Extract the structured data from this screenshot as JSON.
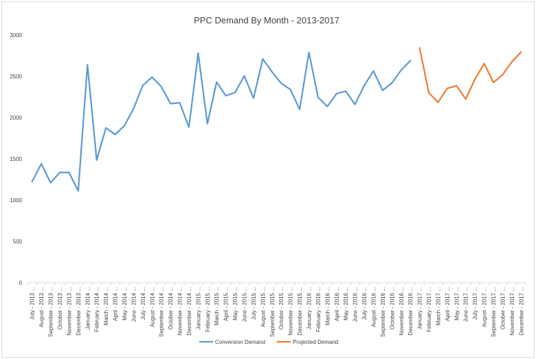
{
  "chart_data": {
    "type": "line",
    "title": "PPC Demand By Month - 2013-2017",
    "xlabel": "",
    "ylabel": "",
    "ylim": [
      0,
      3000
    ],
    "yticks": [
      0,
      500,
      1000,
      1500,
      2000,
      2500,
      3000
    ],
    "grid": false,
    "legend_position": "bottom",
    "categories": [
      "July - 2013 ...",
      "August - 2013 ...",
      "September - 2013 ...",
      "October - 2013 ...",
      "November - 2013 ...",
      "December - 2013 ...",
      "January - 2014 ...",
      "February - 2014 ...",
      "March - 2014 ...",
      "April - 2014 ...",
      "May - 2014 ...",
      "June - 2014 ...",
      "July - 2014 ...",
      "August - 2014 ...",
      "September - 2014 ...",
      "October - 2014 ...",
      "November - 2014 ...",
      "December - 2014 ...",
      "January - 2015 ...",
      "February - 2015 ...",
      "March - 2015 ...",
      "April - 2015 ...",
      "May - 2015 ...",
      "June - 2015 ...",
      "July - 2015 ...",
      "August - 2015 ...",
      "September - 2015 ...",
      "October - 2015 ...",
      "November - 2015 ...",
      "December - 2015 ...",
      "January - 2016 ...",
      "February - 2016 ...",
      "March - 2016 ...",
      "April - 2016 ...",
      "May - 2016 ...",
      "June - 2016 ...",
      "July - 2016 ...",
      "August - 2016 ...",
      "September - 2016 ...",
      "October - 2016 ...",
      "November - 2016 ...",
      "December - 2016 ...",
      "January - 2017 ...",
      "February - 2017 ...",
      "March - 2017 ...",
      "April - 2017 ...",
      "May - 2017 ...",
      "June - 2017 ...",
      "July - 2017 ...",
      "August - 2017 ...",
      "September - 2017 ...",
      "October - 2017 ...",
      "November - 2017 ...",
      "December - 2017 ..."
    ],
    "series": [
      {
        "name": "Conversion Demand",
        "color": "#5b9bd5",
        "values": [
          1225,
          1440,
          1210,
          1335,
          1335,
          1110,
          2640,
          1485,
          1875,
          1795,
          1900,
          2110,
          2390,
          2490,
          2375,
          2170,
          2180,
          1885,
          2780,
          1925,
          2430,
          2265,
          2305,
          2505,
          2235,
          2710,
          2555,
          2415,
          2340,
          2100,
          2790,
          2245,
          2135,
          2290,
          2320,
          2160,
          2390,
          2565,
          2330,
          2420,
          2575,
          2690,
          null,
          null,
          null,
          null,
          null,
          null,
          null,
          null,
          null,
          null,
          null,
          null
        ]
      },
      {
        "name": "Projected Demand",
        "color": "#ed7d31",
        "values": [
          null,
          null,
          null,
          null,
          null,
          null,
          null,
          null,
          null,
          null,
          null,
          null,
          null,
          null,
          null,
          null,
          null,
          null,
          null,
          null,
          null,
          null,
          null,
          null,
          null,
          null,
          null,
          null,
          null,
          null,
          null,
          null,
          null,
          null,
          null,
          null,
          null,
          null,
          null,
          null,
          null,
          null,
          2845,
          2300,
          2185,
          2355,
          2385,
          2225,
          2465,
          2655,
          2425,
          2520,
          2675,
          2795
        ]
      }
    ]
  }
}
